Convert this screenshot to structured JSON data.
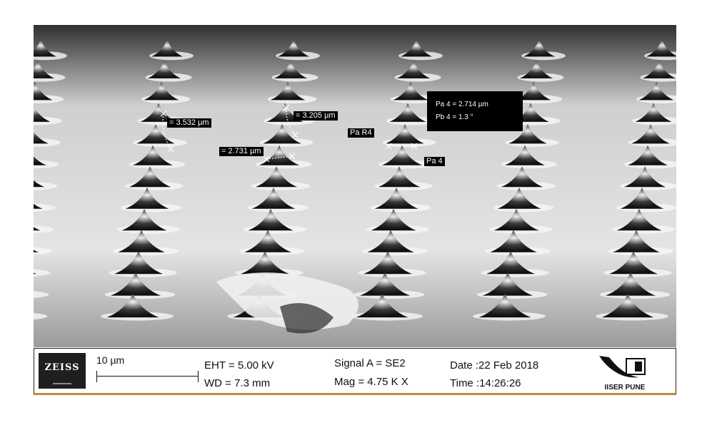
{
  "image": {
    "description_icon": "sem-micrograph-icon",
    "annotations": {
      "m1": "= 3.532 µm",
      "m2": "= 3.205 µm",
      "m3": "= 2.731 µm",
      "pa_r4": "Pa R4",
      "pa4": "Pa 4",
      "info_line1": "Pa 4 = 2.714 µm",
      "info_line2": "Pb 4 =  1.3 °"
    }
  },
  "databar": {
    "brand": "ZEISS",
    "scale_label": "10 µm",
    "eht": "EHT =  5.00 kV",
    "wd": "WD =  7.3 mm",
    "signal": "Signal A = SE2",
    "mag": "Mag =   4.75 K X",
    "date": "Date :22 Feb 2018",
    "time": "Time :14:26:26",
    "institute": "IISER PUNE"
  },
  "colors": {
    "accent_line": "#c28a3a"
  }
}
